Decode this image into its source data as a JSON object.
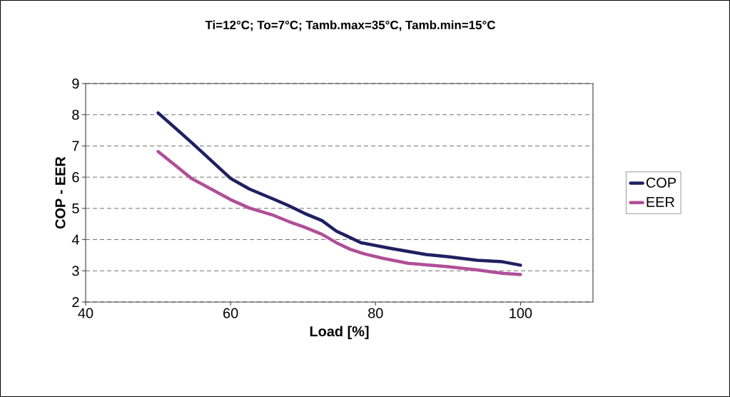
{
  "chart_data": {
    "type": "line",
    "title": "Ti=12°C; To=7°C; Tamb.max=35°C, Tamb.min=15°C",
    "xlabel": "Load [%]",
    "ylabel": "COP - EER",
    "xlim": [
      40,
      110
    ],
    "xticks": [
      40,
      60,
      80,
      100
    ],
    "ylim": [
      2,
      9
    ],
    "yticks": [
      2,
      3,
      4,
      5,
      6,
      7,
      8,
      9
    ],
    "grid": "y",
    "legend": "right",
    "marker": "none",
    "line_style": "solid",
    "series": [
      {
        "name": "COP",
        "color": "#1f2060",
        "x": [
          50,
          55,
          60,
          62.6,
          65.9,
          67.9,
          70.2,
          72.6,
          74.6,
          75.9,
          78,
          82,
          87,
          90,
          94,
          97.5,
          100
        ],
        "values": [
          8.06,
          7.03,
          5.96,
          5.62,
          5.3,
          5.1,
          4.84,
          4.61,
          4.27,
          4.13,
          3.9,
          3.72,
          3.52,
          3.45,
          3.34,
          3.29,
          3.18
        ]
      },
      {
        "name": "EER",
        "color": "#b04f98",
        "x": [
          50,
          54.6,
          60,
          62.6,
          65.9,
          67.9,
          70.2,
          72.6,
          74.6,
          76.5,
          78.5,
          81,
          84.5,
          90,
          94,
          97.5,
          100
        ],
        "values": [
          6.82,
          5.96,
          5.28,
          5.01,
          4.78,
          4.59,
          4.4,
          4.17,
          3.9,
          3.69,
          3.54,
          3.4,
          3.24,
          3.13,
          3.03,
          2.92,
          2.88
        ]
      }
    ]
  }
}
